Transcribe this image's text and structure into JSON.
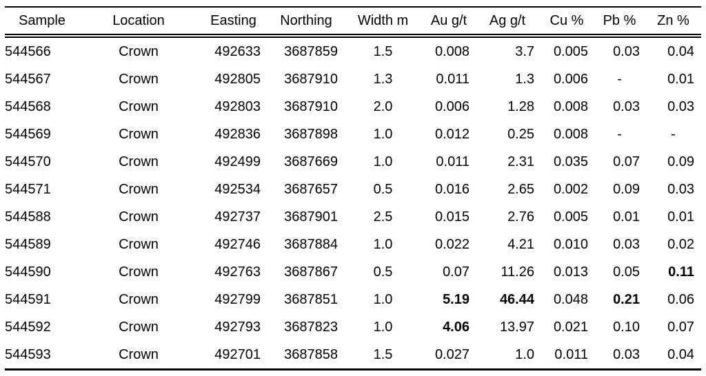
{
  "page": {
    "background": "#ffffff",
    "text_color": "#000000",
    "rule_color": "#000000"
  },
  "table": {
    "columns": [
      "Sample",
      "Location",
      "Easting",
      "Northing",
      "Width m",
      "Au g/t",
      "Ag g/t",
      "Cu %",
      "Pb %",
      "Zn %"
    ],
    "column_keys": [
      "sample",
      "location",
      "easting",
      "northing",
      "width-m",
      "au-g-t",
      "ag-g-t",
      "cu-pct",
      "pb-pct",
      "zn-pct"
    ],
    "rows": [
      [
        "544566",
        "Crown",
        "492633",
        "3687859",
        "1.5",
        "0.008",
        "3.7",
        "0.005",
        "0.03",
        "0.04"
      ],
      [
        "544567",
        "Crown",
        "492805",
        "3687910",
        "1.3",
        "0.011",
        "1.3",
        "0.006",
        "-",
        "0.01"
      ],
      [
        "544568",
        "Crown",
        "492803",
        "3687910",
        "2.0",
        "0.006",
        "1.28",
        "0.008",
        "0.03",
        "0.03"
      ],
      [
        "544569",
        "Crown",
        "492836",
        "3687898",
        "1.0",
        "0.012",
        "0.25",
        "0.008",
        "-",
        "-"
      ],
      [
        "544570",
        "Crown",
        "492499",
        "3687669",
        "1.0",
        "0.011",
        "2.31",
        "0.035",
        "0.07",
        "0.09"
      ],
      [
        "544571",
        "Crown",
        "492534",
        "3687657",
        "0.5",
        "0.016",
        "2.65",
        "0.002",
        "0.09",
        "0.03"
      ],
      [
        "544588",
        "Crown",
        "492737",
        "3687901",
        "2.5",
        "0.015",
        "2.76",
        "0.005",
        "0.01",
        "0.01"
      ],
      [
        "544589",
        "Crown",
        "492746",
        "3687884",
        "1.0",
        "0.022",
        "4.21",
        "0.010",
        "0.03",
        "0.02"
      ],
      [
        "544590",
        "Crown",
        "492763",
        "3687867",
        "0.5",
        "0.07",
        "11.26",
        "0.013",
        "0.05",
        "0.11"
      ],
      [
        "544591",
        "Crown",
        "492799",
        "3687851",
        "1.0",
        "5.19",
        "46.44",
        "0.048",
        "0.21",
        "0.06"
      ],
      [
        "544592",
        "Crown",
        "492793",
        "3687823",
        "1.0",
        "4.06",
        "13.97",
        "0.021",
        "0.10",
        "0.07"
      ],
      [
        "544593",
        "Crown",
        "492701",
        "3687858",
        "1.5",
        "0.027",
        "1.0",
        "0.011",
        "0.03",
        "0.04"
      ]
    ],
    "bold_cells": [
      [
        8,
        9
      ],
      [
        9,
        5
      ],
      [
        9,
        6
      ],
      [
        9,
        8
      ],
      [
        10,
        5
      ]
    ]
  }
}
